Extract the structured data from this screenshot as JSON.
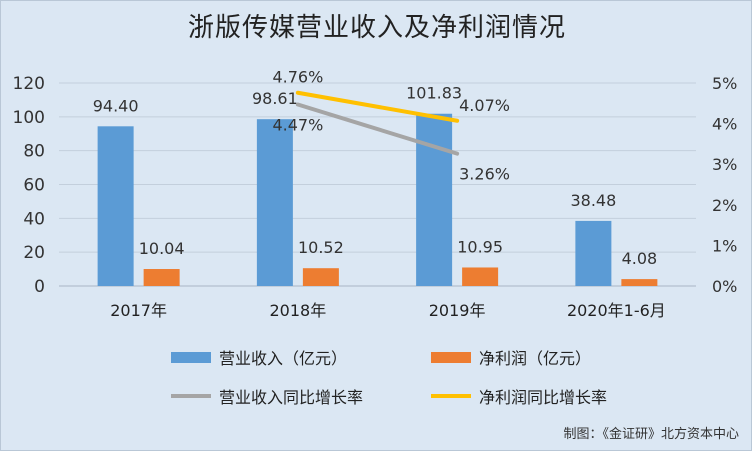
{
  "chart_data": {
    "type": "bar",
    "title": "浙版传媒营业收入及净利润情况",
    "categories": [
      "2017年",
      "2018年",
      "2019年",
      "2020年1-6月"
    ],
    "ylim": [
      0,
      120
    ],
    "yticks": [
      "0",
      "20",
      "40",
      "60",
      "80",
      "100",
      "120"
    ],
    "y2lim": [
      0,
      5
    ],
    "y2ticks": [
      "0%",
      "1%",
      "2%",
      "3%",
      "4%",
      "5%"
    ],
    "grid": true,
    "legend_position": "bottom",
    "series": [
      {
        "name": "营业收入（亿元）",
        "kind": "bar",
        "axis": "left",
        "color": "#5b9bd5",
        "values": [
          94.4,
          98.61,
          101.83,
          38.48
        ],
        "labels": [
          "94.40",
          "98.61",
          "101.83",
          "38.48"
        ]
      },
      {
        "name": "净利润（亿元）",
        "kind": "bar",
        "axis": "left",
        "color": "#ed7d31",
        "values": [
          10.04,
          10.52,
          10.95,
          4.08
        ],
        "labels": [
          "10.04",
          "10.52",
          "10.95",
          "4.08"
        ]
      },
      {
        "name": "营业收入同比增长率",
        "kind": "line",
        "axis": "right",
        "color": "#a5a5a5",
        "values": [
          null,
          4.47,
          3.26,
          null
        ],
        "labels": [
          null,
          "4.47%",
          "3.26%",
          null
        ]
      },
      {
        "name": "净利润同比增长率",
        "kind": "line",
        "axis": "right",
        "color": "#ffc000",
        "values": [
          null,
          4.76,
          4.07,
          null
        ],
        "labels": [
          null,
          "4.76%",
          "4.07%",
          null
        ]
      }
    ]
  },
  "credit": "制图：《金证研》北方资本中心"
}
